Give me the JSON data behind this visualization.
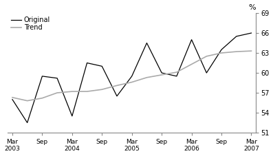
{
  "original_x": [
    0,
    1,
    2,
    3,
    4,
    5,
    6,
    7,
    8,
    9,
    10,
    11,
    12,
    13,
    14,
    15,
    16
  ],
  "original_y": [
    56.0,
    52.5,
    59.5,
    59.2,
    53.5,
    61.5,
    61.0,
    56.5,
    59.5,
    64.5,
    60.0,
    59.5,
    65.0,
    60.0,
    63.5,
    65.5,
    66.0
  ],
  "trend_x": [
    0,
    1,
    2,
    3,
    4,
    5,
    6,
    7,
    8,
    9,
    10,
    11,
    12,
    13,
    14,
    15,
    16
  ],
  "trend_y": [
    56.3,
    55.8,
    56.2,
    57.0,
    57.2,
    57.2,
    57.5,
    58.1,
    58.6,
    59.3,
    59.7,
    60.1,
    61.3,
    62.5,
    63.0,
    63.2,
    63.3
  ],
  "tick_pos": [
    0,
    2,
    4,
    6,
    8,
    10,
    12,
    14,
    16
  ],
  "tick_labels": [
    "Mar\n2003",
    "Sep",
    "Mar\n2004",
    "Sep",
    "Mar\n2005",
    "Sep",
    "Mar\n2006",
    "Sep",
    "Mar\n2007"
  ],
  "ylim": [
    51,
    69
  ],
  "yticks": [
    51,
    54,
    57,
    60,
    63,
    66,
    69
  ],
  "xlim": [
    -0.3,
    16.3
  ],
  "ylabel": "%",
  "original_color": "#000000",
  "trend_color": "#aaaaaa",
  "legend_original": "Original",
  "legend_trend": "Trend",
  "background_color": "#ffffff",
  "spine_color": "#888888"
}
